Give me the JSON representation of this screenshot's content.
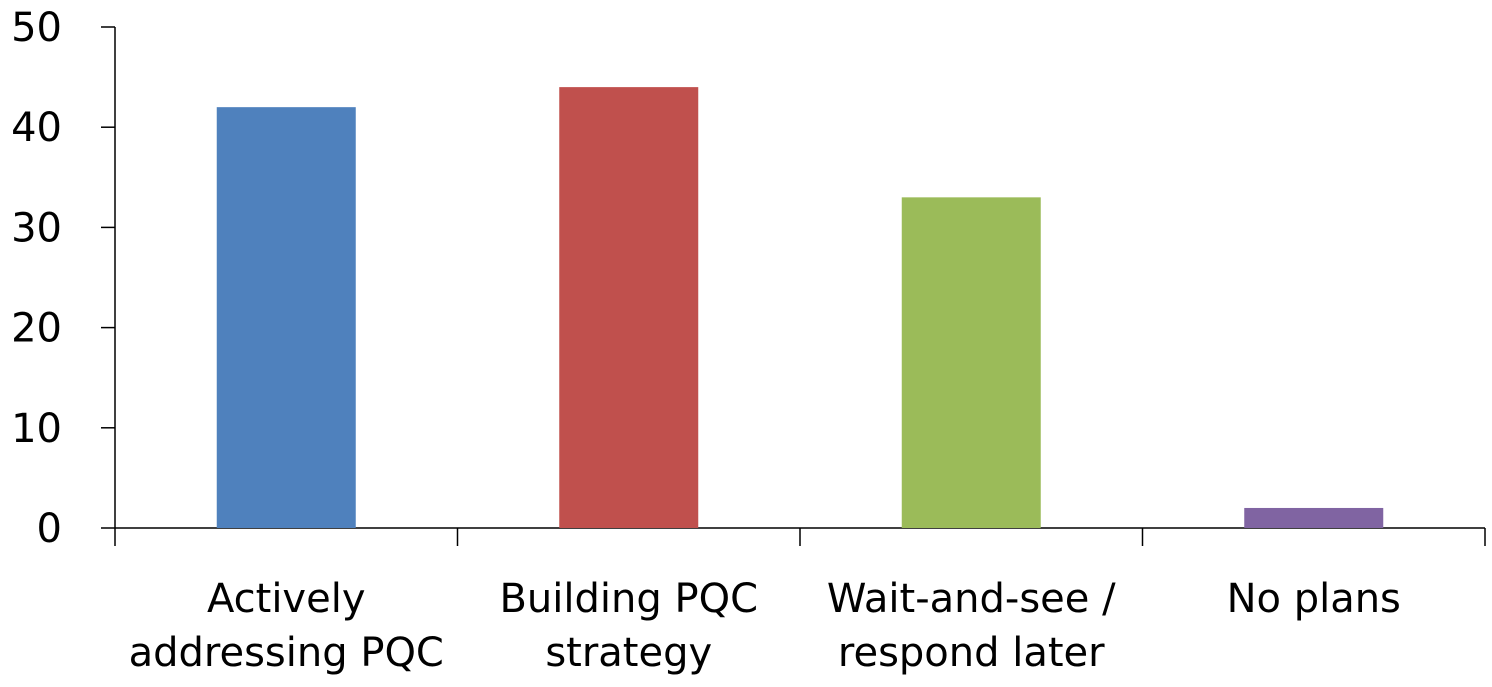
{
  "chart_data": {
    "type": "bar",
    "categories": [
      [
        "Actively",
        "addressing PQC"
      ],
      [
        "Building PQC",
        "strategy"
      ],
      [
        "Wait-and-see /",
        "respond later"
      ],
      [
        "No plans"
      ]
    ],
    "values": [
      42,
      44,
      33,
      2
    ],
    "colors": [
      "#4f81bd",
      "#c0504d",
      "#9bbb59",
      "#8064a2"
    ],
    "ylim": [
      0,
      50
    ],
    "yticks": [
      "0",
      "10",
      "20",
      "30",
      "40",
      "50"
    ],
    "title": "",
    "xlabel": "",
    "ylabel": "",
    "grid": false,
    "legend": "none"
  }
}
